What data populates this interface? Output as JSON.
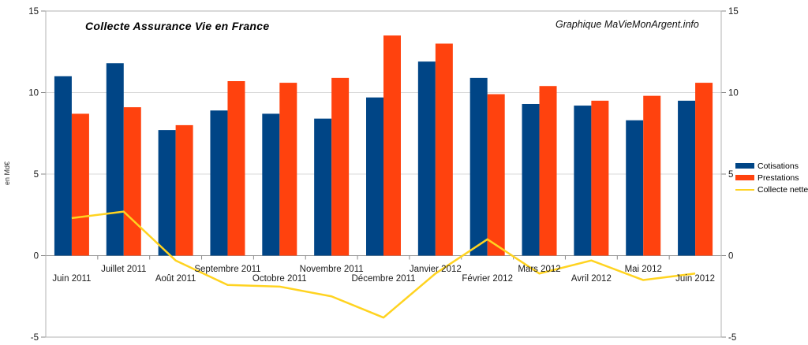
{
  "title": "Collecte Assurance Vie en France",
  "watermark": "Graphique MaVieMonArgent.info",
  "y_axis": {
    "unit_label": "en Md€",
    "ticks": [
      15,
      10,
      5,
      0,
      -5
    ],
    "min": -5,
    "max": 15
  },
  "legend": [
    {
      "label": "Cotisations",
      "color": "#004586",
      "type": "bar"
    },
    {
      "label": "Prestations",
      "color": "#FF420E",
      "type": "bar"
    },
    {
      "label": "Collecte nette",
      "color": "#FFD320",
      "type": "line"
    }
  ],
  "chart_data": {
    "type": "bar",
    "title": "Collecte Assurance Vie en France",
    "ylabel": "en Md€",
    "ylim": [
      -5,
      15
    ],
    "grid": true,
    "legend_position": "right",
    "categories": [
      "Juin 2011",
      "Juillet 2011",
      "Août 2011",
      "Septembre 2011",
      "Octobre 2011",
      "Novembre 2011",
      "Décembre 2011",
      "Janvier 2012",
      "Février 2012",
      "Mars 2012",
      "Avril 2012",
      "Mai 2012",
      "Juin 2012"
    ],
    "series": [
      {
        "name": "Cotisations",
        "type": "bar",
        "color": "#004586",
        "values": [
          11.0,
          11.8,
          7.7,
          8.9,
          8.7,
          8.4,
          9.7,
          11.9,
          10.9,
          9.3,
          9.2,
          8.3,
          9.5
        ]
      },
      {
        "name": "Prestations",
        "type": "bar",
        "color": "#FF420E",
        "values": [
          8.7,
          9.1,
          8.0,
          10.7,
          10.6,
          10.9,
          13.5,
          13.0,
          9.9,
          10.4,
          9.5,
          9.8,
          10.6
        ]
      },
      {
        "name": "Collecte nette",
        "type": "line",
        "color": "#FFD320",
        "values": [
          2.3,
          2.7,
          -0.3,
          -1.8,
          -1.9,
          -2.5,
          -3.8,
          -1.1,
          1.0,
          -1.1,
          -0.3,
          -1.5,
          -1.1
        ]
      }
    ]
  }
}
